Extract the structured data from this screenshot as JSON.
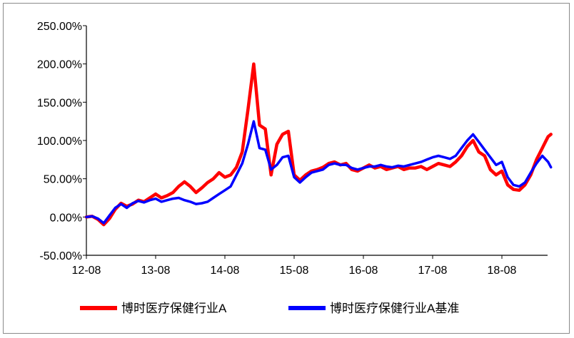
{
  "chart_data": {
    "type": "line",
    "title": "",
    "xlabel": "",
    "ylabel": "",
    "x_ticks": [
      "12-08",
      "13-08",
      "14-08",
      "15-08",
      "16-08",
      "17-08",
      "18-08"
    ],
    "y_ticks": [
      "250.00%",
      "200.00%",
      "150.00%",
      "100.00%",
      "50.00%",
      "0.00%",
      "-50.00%"
    ],
    "ylim": [
      -50,
      250
    ],
    "y_unit": "%",
    "x_unit": "months since 2012-08",
    "xlim": [
      0,
      80.5
    ],
    "grid": false,
    "legend_position": "bottom",
    "series": [
      {
        "name": "博时医疗保健行业A",
        "color": "#ff0000",
        "x": [
          0,
          1,
          2,
          3,
          4,
          5,
          6,
          7,
          8,
          9,
          10,
          11,
          12,
          13,
          14,
          15,
          16,
          17,
          18,
          19,
          20,
          21,
          22,
          23,
          24,
          25,
          26,
          27,
          28,
          29,
          30,
          31,
          32,
          33,
          34,
          35,
          36,
          37,
          38,
          39,
          40,
          41,
          42,
          43,
          44,
          45,
          46,
          47,
          48,
          49,
          50,
          51,
          52,
          53,
          54,
          55,
          56,
          57,
          58,
          59,
          60,
          61,
          62,
          63,
          64,
          65,
          66,
          67,
          68,
          69,
          70,
          71,
          72,
          73,
          74,
          75,
          76,
          77,
          78,
          79,
          80,
          80.5
        ],
        "y": [
          0,
          1,
          -3,
          -10,
          -2,
          10,
          18,
          14,
          17,
          22,
          20,
          25,
          30,
          25,
          28,
          32,
          40,
          46,
          40,
          32,
          38,
          45,
          50,
          58,
          52,
          55,
          65,
          85,
          140,
          200,
          120,
          115,
          55,
          95,
          108,
          112,
          55,
          48,
          55,
          60,
          62,
          65,
          70,
          72,
          68,
          70,
          62,
          60,
          64,
          68,
          64,
          66,
          62,
          64,
          66,
          62,
          64,
          64,
          66,
          62,
          66,
          70,
          68,
          66,
          72,
          80,
          92,
          100,
          85,
          80,
          62,
          55,
          60,
          42,
          36,
          35,
          42,
          55,
          75,
          90,
          105,
          108
        ]
      },
      {
        "name": "博时医疗保健行业A基准",
        "color": "#0000ff",
        "x": [
          0,
          1,
          2,
          3,
          4,
          5,
          6,
          7,
          8,
          9,
          10,
          11,
          12,
          13,
          14,
          15,
          16,
          17,
          18,
          19,
          20,
          21,
          22,
          23,
          24,
          25,
          26,
          27,
          28,
          29,
          30,
          31,
          32,
          33,
          34,
          35,
          36,
          37,
          38,
          39,
          40,
          41,
          42,
          43,
          44,
          45,
          46,
          47,
          48,
          49,
          50,
          51,
          52,
          53,
          54,
          55,
          56,
          57,
          58,
          59,
          60,
          61,
          62,
          63,
          64,
          65,
          66,
          67,
          68,
          69,
          70,
          71,
          72,
          73,
          74,
          75,
          76,
          77,
          78,
          79,
          80,
          80.5
        ],
        "y": [
          0,
          1,
          -2,
          -8,
          2,
          12,
          17,
          12,
          18,
          21,
          19,
          22,
          24,
          20,
          22,
          24,
          25,
          22,
          20,
          17,
          18,
          20,
          25,
          30,
          35,
          40,
          55,
          70,
          95,
          125,
          90,
          88,
          62,
          68,
          78,
          80,
          52,
          45,
          52,
          58,
          60,
          62,
          68,
          70,
          68,
          68,
          64,
          62,
          64,
          66,
          66,
          68,
          66,
          65,
          67,
          66,
          68,
          70,
          72,
          75,
          78,
          80,
          78,
          76,
          80,
          90,
          100,
          108,
          98,
          88,
          78,
          68,
          72,
          52,
          42,
          40,
          45,
          58,
          70,
          80,
          72,
          65
        ]
      }
    ]
  }
}
